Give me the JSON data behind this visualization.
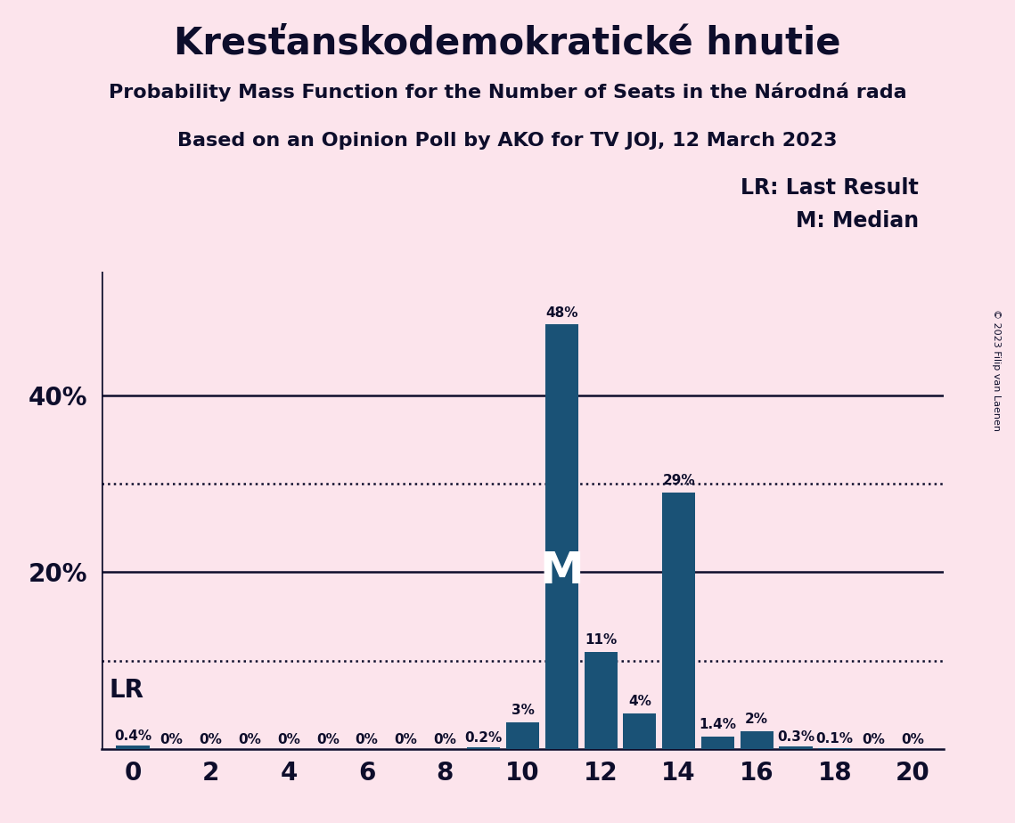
{
  "title": "Kresťanskodemokratické hnutie",
  "subtitle1": "Probability Mass Function for the Number of Seats in the Národná rada",
  "subtitle2": "Based on an Opinion Poll by AKO for TV JOJ, 12 March 2023",
  "copyright": "© 2023 Filip van Laenen",
  "seats": [
    0,
    1,
    2,
    3,
    4,
    5,
    6,
    7,
    8,
    9,
    10,
    11,
    12,
    13,
    14,
    15,
    16,
    17,
    18,
    19,
    20
  ],
  "probabilities": [
    0.4,
    0,
    0,
    0,
    0,
    0,
    0,
    0,
    0,
    0.2,
    3,
    48,
    11,
    4,
    29,
    1.4,
    2,
    0.3,
    0.1,
    0,
    0
  ],
  "labels": [
    "0.4%",
    "0%",
    "0%",
    "0%",
    "0%",
    "0%",
    "0%",
    "0%",
    "0%",
    "0.2%",
    "3%",
    "48%",
    "11%",
    "4%",
    "29%",
    "1.4%",
    "2%",
    "0.3%",
    "0.1%",
    "0%",
    "0%"
  ],
  "bar_color": "#1a5276",
  "background_color": "#fce4ec",
  "text_color": "#0d0d2b",
  "median_seat": 11,
  "lr_seat": 0,
  "dotted_lines": [
    10,
    30
  ],
  "solid_lines": [
    20,
    40
  ],
  "ylabel_ticks": [
    20,
    40
  ],
  "xlabel_ticks": [
    0,
    2,
    4,
    6,
    8,
    10,
    12,
    14,
    16,
    18,
    20
  ],
  "ylim": [
    0,
    54
  ],
  "title_fontsize": 30,
  "subtitle_fontsize": 16,
  "label_fontsize": 11,
  "tick_fontsize": 20,
  "legend_fontsize": 17,
  "m_fontsize": 36,
  "lr_fontsize": 20
}
